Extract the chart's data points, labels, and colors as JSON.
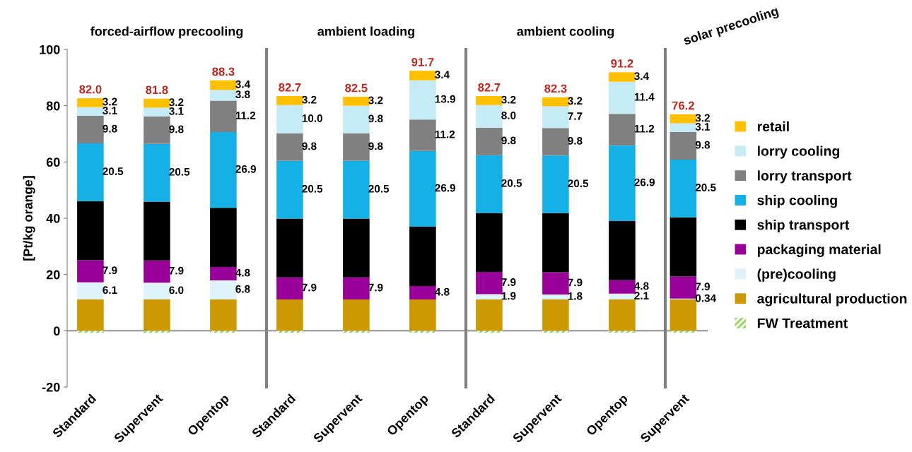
{
  "chart_data": [
    {
      "type": "bar",
      "stacked": true,
      "title": "forced-airflow precooling",
      "ylabel": "[Pt/kg orange]",
      "categories": [
        "Standard",
        "Supervent",
        "Opentop"
      ],
      "ylim": [
        -20,
        100
      ],
      "yticks": [
        -20,
        0,
        20,
        40,
        60,
        80,
        100
      ],
      "totals": [
        "82.0",
        "81.8",
        "88.3"
      ],
      "series": [
        {
          "color": "#92d050",
          "values": [
            -0.7,
            -0.7,
            -0.7
          ],
          "value_labels": [
            null,
            null,
            null
          ]
        },
        {
          "color": "#cc9900",
          "values": [
            11.1,
            11.1,
            11.1
          ],
          "value_labels": [
            null,
            null,
            null
          ]
        },
        {
          "color": "#dff3fb",
          "values": [
            6.1,
            6.0,
            6.8
          ],
          "value_labels": [
            "6.1",
            "6.0",
            "6.8"
          ]
        },
        {
          "color": "#990099",
          "values": [
            7.9,
            7.9,
            4.8
          ],
          "value_labels": [
            "7.9",
            "7.9",
            "4.8"
          ]
        },
        {
          "color": "#000000",
          "values": [
            21.0,
            20.9,
            21.0
          ],
          "value_labels": [
            null,
            null,
            null
          ]
        },
        {
          "color": "#15b1e6",
          "values": [
            20.5,
            20.5,
            26.9
          ],
          "value_labels": [
            "20.5",
            "20.5",
            "26.9"
          ]
        },
        {
          "color": "#808080",
          "values": [
            9.8,
            9.8,
            11.2
          ],
          "value_labels": [
            "9.8",
            "9.8",
            "11.2"
          ]
        },
        {
          "color": "#c5ebf7",
          "values": [
            3.1,
            3.1,
            3.8
          ],
          "value_labels": [
            "3.1",
            "3.1",
            "3.8"
          ]
        },
        {
          "color": "#ffc000",
          "values": [
            3.2,
            3.2,
            3.4
          ],
          "value_labels": [
            "3.2",
            "3.2",
            "3.4"
          ]
        }
      ]
    },
    {
      "type": "bar",
      "stacked": true,
      "title": "ambient loading",
      "categories": [
        "Standard",
        "Supervent",
        "Opentop"
      ],
      "ylim": [
        -20,
        100
      ],
      "yticks": [
        -20,
        0,
        20,
        40,
        60,
        80,
        100
      ],
      "tick_labels": "x",
      "totals": [
        "82.7",
        "82.5",
        "91.7"
      ],
      "series": [
        {
          "color": "#92d050",
          "values": [
            -0.7,
            -0.7,
            -0.7
          ],
          "value_labels": [
            null,
            null,
            null
          ]
        },
        {
          "color": "#cc9900",
          "values": [
            11.1,
            11.1,
            11.1
          ],
          "value_labels": [
            null,
            null,
            null
          ]
        },
        {
          "color": "#dff3fb",
          "values": [
            null,
            null,
            null
          ],
          "value_labels": [
            null,
            null,
            null
          ]
        },
        {
          "color": "#990099",
          "values": [
            7.9,
            7.9,
            4.8
          ],
          "value_labels": [
            "7.9",
            "7.9",
            "4.8"
          ]
        },
        {
          "color": "#000000",
          "values": [
            20.9,
            20.9,
            21.1
          ],
          "value_labels": [
            null,
            null,
            null
          ]
        },
        {
          "color": "#15b1e6",
          "values": [
            20.5,
            20.5,
            26.9
          ],
          "value_labels": [
            "20.5",
            "20.5",
            "26.9"
          ]
        },
        {
          "color": "#808080",
          "values": [
            9.8,
            9.8,
            11.2
          ],
          "value_labels": [
            "9.8",
            "9.8",
            "11.2"
          ]
        },
        {
          "color": "#c5ebf7",
          "values": [
            10.0,
            9.8,
            13.9
          ],
          "value_labels": [
            "10.0",
            "9.8",
            "13.9"
          ]
        },
        {
          "color": "#ffc000",
          "values": [
            3.2,
            3.2,
            3.4
          ],
          "value_labels": [
            "3.2",
            "3.2",
            "3.4"
          ]
        }
      ]
    },
    {
      "type": "bar",
      "stacked": true,
      "title": "ambient cooling",
      "categories": [
        "Standard",
        "Supervent",
        "Opentop"
      ],
      "ylim": [
        -20,
        100
      ],
      "yticks": [
        -20,
        0,
        20,
        40,
        60,
        80,
        100
      ],
      "tick_labels": "x",
      "totals": [
        "82.7",
        "82.3",
        "91.2"
      ],
      "series": [
        {
          "color": "#92d050",
          "values": [
            -0.7,
            -0.7,
            -0.7
          ],
          "value_labels": [
            null,
            null,
            null
          ]
        },
        {
          "color": "#cc9900",
          "values": [
            11.1,
            11.1,
            11.1
          ],
          "value_labels": [
            null,
            null,
            null
          ]
        },
        {
          "color": "#dff3fb",
          "values": [
            1.9,
            1.8,
            2.1
          ],
          "value_labels": [
            "1.9",
            "1.8",
            "2.1"
          ]
        },
        {
          "color": "#990099",
          "values": [
            7.9,
            7.9,
            4.8
          ],
          "value_labels": [
            "7.9",
            "7.9",
            "4.8"
          ]
        },
        {
          "color": "#000000",
          "values": [
            21.0,
            21.0,
            21.0
          ],
          "value_labels": [
            null,
            null,
            null
          ]
        },
        {
          "color": "#15b1e6",
          "values": [
            20.5,
            20.5,
            26.9
          ],
          "value_labels": [
            "20.5",
            "20.5",
            "26.9"
          ]
        },
        {
          "color": "#808080",
          "values": [
            9.8,
            9.8,
            11.2
          ],
          "value_labels": [
            "9.8",
            "9.8",
            "11.2"
          ]
        },
        {
          "color": "#c5ebf7",
          "values": [
            8.0,
            7.7,
            11.4
          ],
          "value_labels": [
            "8.0",
            "7.7",
            "11.4"
          ]
        },
        {
          "color": "#ffc000",
          "values": [
            3.2,
            3.2,
            3.4
          ],
          "value_labels": [
            "3.2",
            "3.2",
            "3.4"
          ]
        }
      ]
    },
    {
      "type": "bar",
      "stacked": true,
      "title": "solar precooling",
      "categories": [
        "Supervent"
      ],
      "ylim": [
        -20,
        100
      ],
      "yticks": [
        -20,
        0,
        20,
        40,
        60,
        80,
        100
      ],
      "tick_labels": "x",
      "totals": [
        "76.2"
      ],
      "legend": "right",
      "series": [
        {
          "name": "FW Treatment",
          "color": "#92d050",
          "values": [
            -0.7
          ],
          "value_labels": [
            null
          ]
        },
        {
          "name": "agricultural production",
          "color": "#cc9900",
          "values": [
            11.1
          ],
          "value_labels": [
            null
          ]
        },
        {
          "name": "(pre)cooling",
          "color": "#dff3fb",
          "values": [
            0.34
          ],
          "value_labels": [
            "0.34"
          ]
        },
        {
          "name": "packaging material",
          "color": "#990099",
          "values": [
            7.9
          ],
          "value_labels": [
            "7.9"
          ]
        },
        {
          "name": "ship transport",
          "color": "#000000",
          "values": [
            21.0
          ],
          "value_labels": [
            null
          ]
        },
        {
          "name": "ship cooling",
          "color": "#15b1e6",
          "values": [
            20.5
          ],
          "value_labels": [
            "20.5"
          ]
        },
        {
          "name": "lorry transport",
          "color": "#808080",
          "values": [
            9.8
          ],
          "value_labels": [
            "9.8"
          ]
        },
        {
          "name": "lorry cooling",
          "color": "#c5ebf7",
          "values": [
            3.1
          ],
          "value_labels": [
            "3.1"
          ]
        },
        {
          "name": "retail",
          "color": "#ffc000",
          "values": [
            3.2
          ],
          "value_labels": [
            "3.2"
          ]
        }
      ]
    }
  ]
}
